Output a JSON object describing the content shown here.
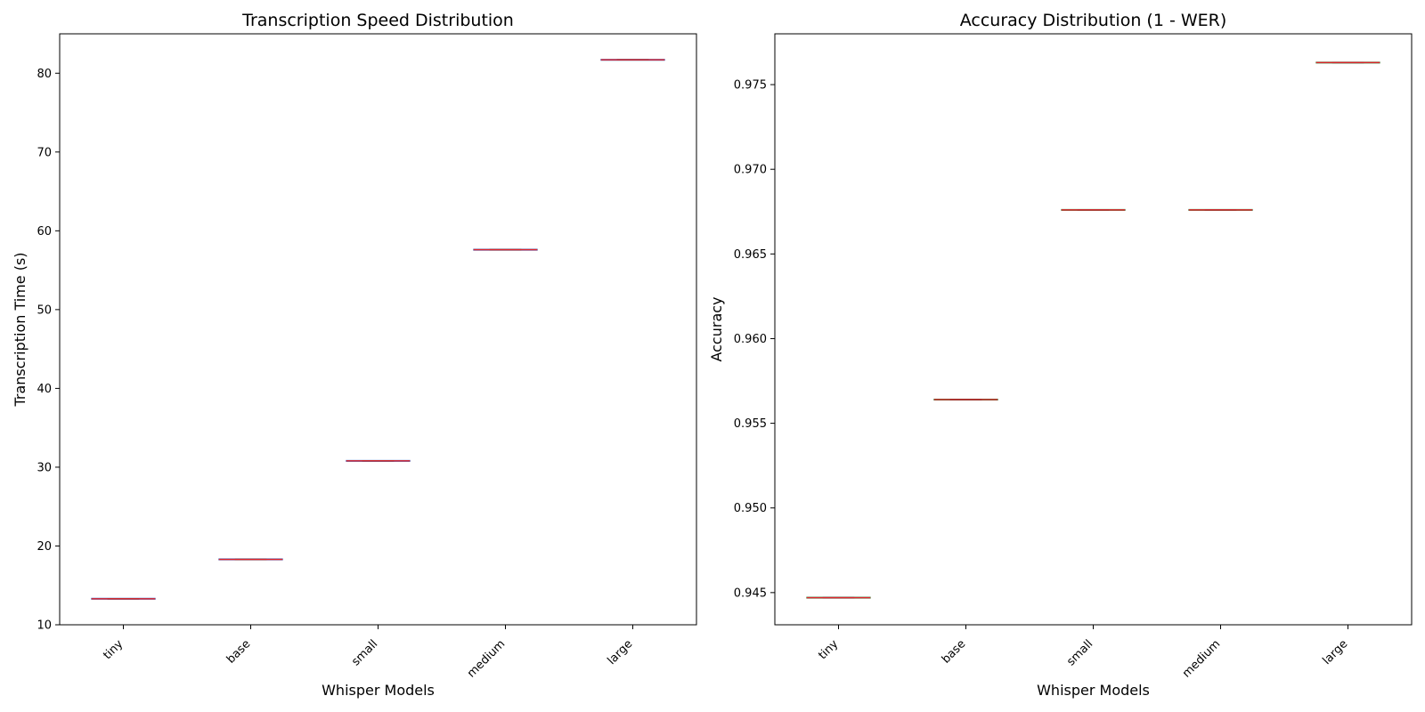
{
  "chart_data": [
    {
      "type": "box",
      "title": "Transcription Speed Distribution",
      "xlabel": "Whisper Models",
      "ylabel": "Transcription Time (s)",
      "categories": [
        "tiny",
        "base",
        "small",
        "medium",
        "large"
      ],
      "values": [
        13.3,
        18.3,
        30.8,
        57.6,
        81.7
      ],
      "ylim": [
        10,
        85
      ],
      "yticks": [
        "10",
        "20",
        "30",
        "40",
        "50",
        "60",
        "70",
        "80"
      ],
      "grid": false,
      "colors": {
        "box": "#1f4fb4",
        "median": "#e0242c"
      }
    },
    {
      "type": "box",
      "title": "Accuracy Distribution (1 - WER)",
      "xlabel": "Whisper Models",
      "ylabel": "Accuracy",
      "categories": [
        "tiny",
        "base",
        "small",
        "medium",
        "large"
      ],
      "values": [
        0.9447,
        0.9564,
        0.9676,
        0.9676,
        0.9763
      ],
      "ylim": [
        0.9431,
        0.978
      ],
      "yticks": [
        "0.945",
        "0.950",
        "0.955",
        "0.960",
        "0.965",
        "0.970",
        "0.975"
      ],
      "grid": false,
      "colors": {
        "box": "#1f8a3c",
        "median": "#e0242c"
      }
    }
  ]
}
